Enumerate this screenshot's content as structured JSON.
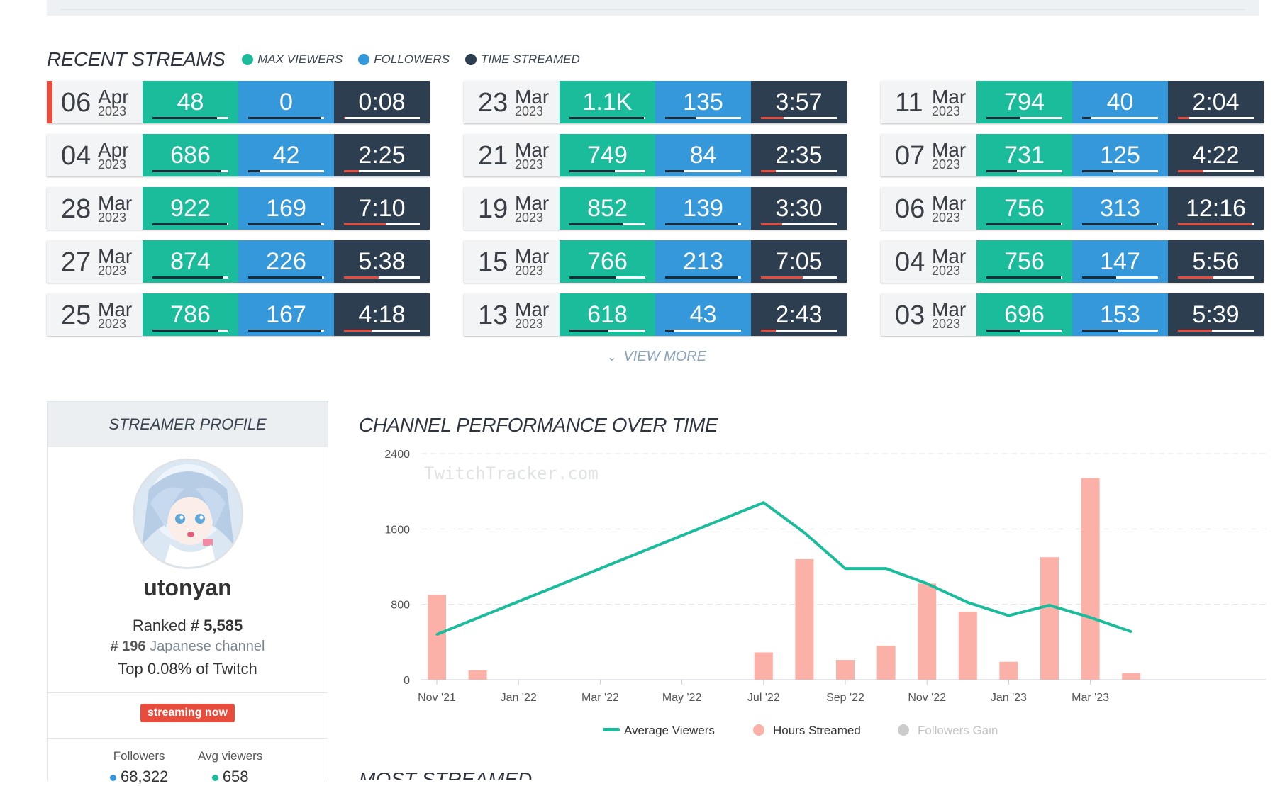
{
  "recent_streams": {
    "title": "RECENT STREAMS",
    "legend": [
      {
        "label": "MAX VIEWERS",
        "color": "#1abc9c"
      },
      {
        "label": "FOLLOWERS",
        "color": "#3498db"
      },
      {
        "label": "TIME STREAMED",
        "color": "#2c3e50"
      }
    ],
    "columns": [
      [
        {
          "day": "06",
          "month": "Apr",
          "year": "2023",
          "max_viewers": "48",
          "followers": "0",
          "time": "0:08",
          "live": true,
          "mv_frac": 0.85,
          "fo_frac": 0.95,
          "ts_frac": 0.02
        },
        {
          "day": "04",
          "month": "Apr",
          "year": "2023",
          "max_viewers": "686",
          "followers": "42",
          "time": "2:25",
          "live": false,
          "mv_frac": 0.9,
          "fo_frac": 0.15,
          "ts_frac": 0.2
        },
        {
          "day": "28",
          "month": "Mar",
          "year": "2023",
          "max_viewers": "922",
          "followers": "169",
          "time": "7:10",
          "live": false,
          "mv_frac": 0.98,
          "fo_frac": 0.95,
          "ts_frac": 0.55
        },
        {
          "day": "27",
          "month": "Mar",
          "year": "2023",
          "max_viewers": "874",
          "followers": "226",
          "time": "5:38",
          "live": false,
          "mv_frac": 0.93,
          "fo_frac": 0.97,
          "ts_frac": 0.46
        },
        {
          "day": "25",
          "month": "Mar",
          "year": "2023",
          "max_viewers": "786",
          "followers": "167",
          "time": "4:18",
          "live": false,
          "mv_frac": 0.86,
          "fo_frac": 0.95,
          "ts_frac": 0.36
        }
      ],
      [
        {
          "day": "23",
          "month": "Mar",
          "year": "2023",
          "max_viewers": "1.1K",
          "followers": "135",
          "time": "3:57",
          "live": false,
          "mv_frac": 0.98,
          "fo_frac": 0.4,
          "ts_frac": 0.3
        },
        {
          "day": "21",
          "month": "Mar",
          "year": "2023",
          "max_viewers": "749",
          "followers": "84",
          "time": "2:35",
          "live": false,
          "mv_frac": 0.6,
          "fo_frac": 0.25,
          "ts_frac": 0.2
        },
        {
          "day": "19",
          "month": "Mar",
          "year": "2023",
          "max_viewers": "852",
          "followers": "139",
          "time": "3:30",
          "live": false,
          "mv_frac": 0.7,
          "fo_frac": 0.95,
          "ts_frac": 0.28
        },
        {
          "day": "15",
          "month": "Mar",
          "year": "2023",
          "max_viewers": "766",
          "followers": "213",
          "time": "7:05",
          "live": false,
          "mv_frac": 0.62,
          "fo_frac": 0.95,
          "ts_frac": 0.55
        },
        {
          "day": "13",
          "month": "Mar",
          "year": "2023",
          "max_viewers": "618",
          "followers": "43",
          "time": "2:43",
          "live": false,
          "mv_frac": 0.5,
          "fo_frac": 0.12,
          "ts_frac": 0.2
        }
      ],
      [
        {
          "day": "11",
          "month": "Mar",
          "year": "2023",
          "max_viewers": "794",
          "followers": "40",
          "time": "2:04",
          "live": false,
          "mv_frac": 0.45,
          "fo_frac": 0.12,
          "ts_frac": 0.15
        },
        {
          "day": "07",
          "month": "Mar",
          "year": "2023",
          "max_viewers": "731",
          "followers": "125",
          "time": "4:22",
          "live": false,
          "mv_frac": 0.4,
          "fo_frac": 0.4,
          "ts_frac": 0.34
        },
        {
          "day": "06",
          "month": "Mar",
          "year": "2023",
          "max_viewers": "756",
          "followers": "313",
          "time": "12:16",
          "live": false,
          "mv_frac": 0.98,
          "fo_frac": 0.98,
          "ts_frac": 0.98
        },
        {
          "day": "04",
          "month": "Mar",
          "year": "2023",
          "max_viewers": "756",
          "followers": "147",
          "time": "5:56",
          "live": false,
          "mv_frac": 0.98,
          "fo_frac": 0.45,
          "ts_frac": 0.47
        },
        {
          "day": "03",
          "month": "Mar",
          "year": "2023",
          "max_viewers": "696",
          "followers": "153",
          "time": "5:39",
          "live": false,
          "mv_frac": 0.45,
          "fo_frac": 0.48,
          "ts_frac": 0.45
        }
      ]
    ],
    "view_more": "VIEW MORE"
  },
  "profile": {
    "header": "STREAMER PROFILE",
    "name": "utonyan",
    "rank_prefix": "Ranked",
    "rank_value": "# 5,585",
    "country_rank": "# 196",
    "country_text": "Japanese channel",
    "top_text": "Top 0.08% of Twitch",
    "live_badge": "streaming now",
    "followers_label": "Followers",
    "followers_value": "68,322",
    "avg_viewers_label": "Avg viewers",
    "avg_viewers_value": "658"
  },
  "performance": {
    "title": "CHANNEL PERFORMANCE OVER TIME",
    "watermark": "TwitchTracker.com"
  },
  "next_section_title": "MOST STREAMED GAMES",
  "chart_data": {
    "type": "bar",
    "x_ticks": [
      "Nov '21",
      "Jan '22",
      "Mar '22",
      "May '22",
      "Jul '22",
      "Sep '22",
      "Nov '22",
      "Jan '23",
      "Mar '23"
    ],
    "y_ticks": [
      0,
      800,
      1600,
      2400
    ],
    "ylim": [
      0,
      2400
    ],
    "grid": true,
    "legend_position": "bottom",
    "series": [
      {
        "name": "Average Viewers",
        "kind": "line",
        "color": "#1abc9c",
        "points": [
          {
            "x": "2021-11",
            "y": 480
          },
          {
            "x": "2022-07",
            "y": 1880
          },
          {
            "x": "2022-08",
            "y": 1560
          },
          {
            "x": "2022-09",
            "y": 1180
          },
          {
            "x": "2022-10",
            "y": 1180
          },
          {
            "x": "2022-11",
            "y": 1020
          },
          {
            "x": "2022-12",
            "y": 820
          },
          {
            "x": "2023-01",
            "y": 680
          },
          {
            "x": "2023-02",
            "y": 790
          },
          {
            "x": "2023-03",
            "y": 660
          },
          {
            "x": "2023-04",
            "y": 510
          }
        ]
      },
      {
        "name": "Hours Streamed",
        "kind": "bar",
        "color": "#fbb0a8",
        "points": [
          {
            "x": "2021-11",
            "y": 900
          },
          {
            "x": "2021-12",
            "y": 100
          },
          {
            "x": "2022-07",
            "y": 290
          },
          {
            "x": "2022-08",
            "y": 1280
          },
          {
            "x": "2022-09",
            "y": 210
          },
          {
            "x": "2022-10",
            "y": 360
          },
          {
            "x": "2022-11",
            "y": 1020
          },
          {
            "x": "2022-12",
            "y": 720
          },
          {
            "x": "2023-01",
            "y": 190
          },
          {
            "x": "2023-02",
            "y": 1300
          },
          {
            "x": "2023-03",
            "y": 2140
          },
          {
            "x": "2023-04",
            "y": 70
          }
        ]
      },
      {
        "name": "Followers Gain",
        "kind": "bar",
        "color": "#cccccc",
        "hidden": true,
        "points": []
      }
    ]
  }
}
